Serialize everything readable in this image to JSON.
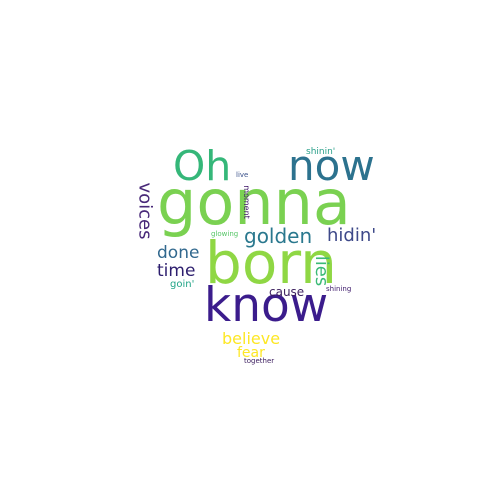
{
  "cloud": {
    "shape": "heart",
    "background": "#ffffff",
    "words": [
      {
        "text": "gonna",
        "color": "#7ad151",
        "orientation": "horizontal"
      },
      {
        "text": "born",
        "color": "#8fd744",
        "orientation": "horizontal"
      },
      {
        "text": "know",
        "color": "#3b1c8c",
        "orientation": "horizontal"
      },
      {
        "text": "Oh",
        "color": "#35b779",
        "orientation": "horizontal"
      },
      {
        "text": "now",
        "color": "#2c728e",
        "orientation": "horizontal"
      },
      {
        "text": "golden",
        "color": "#2a788e",
        "orientation": "horizontal"
      },
      {
        "text": "hidin'",
        "color": "#3e4989",
        "orientation": "horizontal"
      },
      {
        "text": "voices",
        "color": "#482878",
        "orientation": "vertical"
      },
      {
        "text": "done",
        "color": "#31688e",
        "orientation": "horizontal"
      },
      {
        "text": "time",
        "color": "#2d1e6e",
        "orientation": "horizontal"
      },
      {
        "text": "lies",
        "color": "#3aba76",
        "orientation": "vertical"
      },
      {
        "text": "cause",
        "color": "#3c1f5e",
        "orientation": "horizontal"
      },
      {
        "text": "believe",
        "color": "#fde725",
        "orientation": "horizontal"
      },
      {
        "text": "fear",
        "color": "#fde725",
        "orientation": "horizontal"
      },
      {
        "text": "shinin'",
        "color": "#2aa08a",
        "orientation": "horizontal"
      },
      {
        "text": "moment",
        "color": "#3f1667",
        "orientation": "vertical"
      },
      {
        "text": "live",
        "color": "#3b528b",
        "orientation": "horizontal"
      },
      {
        "text": "glowing",
        "color": "#56c667",
        "orientation": "horizontal"
      },
      {
        "text": "goin'",
        "color": "#20a486",
        "orientation": "horizontal"
      },
      {
        "text": "shining",
        "color": "#3e1a6b",
        "orientation": "horizontal"
      },
      {
        "text": "together",
        "color": "#3b1c5e",
        "orientation": "horizontal"
      }
    ]
  }
}
